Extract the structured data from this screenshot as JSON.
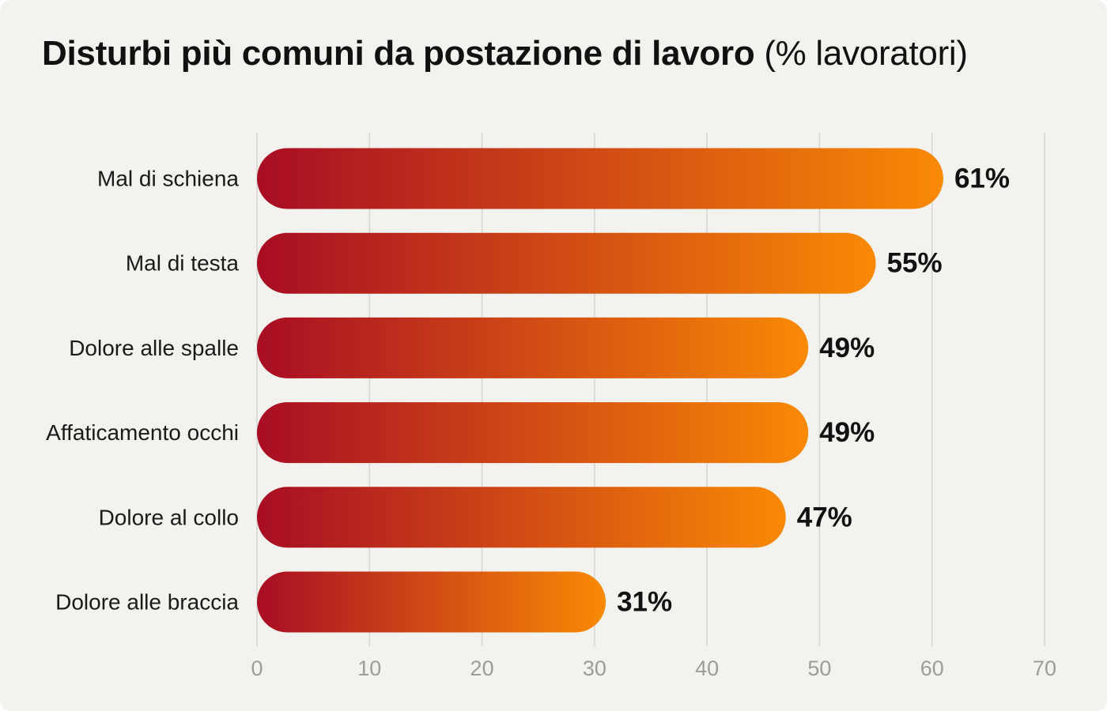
{
  "chart_data": {
    "type": "bar",
    "orientation": "horizontal",
    "title": "Disturbi più comuni da postazione di lavoro",
    "title_unit": "(% lavoratori)",
    "categories": [
      "Mal di schiena",
      "Mal di testa",
      "Dolore alle spalle",
      "Affaticamento occhi",
      "Dolore al collo",
      "Dolore alle braccia"
    ],
    "values": [
      61,
      55,
      49,
      49,
      47,
      31
    ],
    "value_labels": [
      "61%",
      "55%",
      "49%",
      "49%",
      "47%",
      "31%"
    ],
    "xlim": [
      0,
      70
    ],
    "xticks": [
      0,
      10,
      20,
      30,
      40,
      50,
      60,
      70
    ],
    "xlabel": "",
    "ylabel": "",
    "grid": "vertical",
    "legend": "none",
    "colors": {
      "bar_gradient_start": "#a80d24",
      "bar_gradient_end": "#f98a05",
      "background": "#f3f2ee",
      "gridline": "#d6d5d1",
      "tick_label": "#9c9c9c",
      "category_label": "#1a1a1a",
      "value_label": "#111111"
    }
  }
}
